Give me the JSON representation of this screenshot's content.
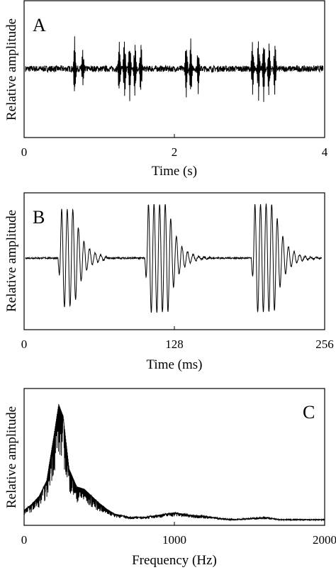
{
  "chart_data": [
    {
      "panel": "A",
      "type": "line",
      "xlabel": "Time (s)",
      "ylabel": "Relative amplitude",
      "xlim": [
        0,
        4
      ],
      "x_ticks": [
        "0",
        "2",
        "4"
      ],
      "y_ticks": [],
      "grid": false,
      "series": [
        {
          "pulses": [
            {
              "t": 0.66,
              "a": 1.0
            },
            {
              "t": 0.77,
              "a": 0.6
            },
            {
              "t": 1.26,
              "a": 0.85
            },
            {
              "t": 1.33,
              "a": 1.0
            },
            {
              "t": 1.4,
              "a": 0.95
            },
            {
              "t": 1.47,
              "a": 0.9
            },
            {
              "t": 1.55,
              "a": 0.8
            },
            {
              "t": 2.16,
              "a": 0.85
            },
            {
              "t": 2.22,
              "a": 0.9
            },
            {
              "t": 2.32,
              "a": 0.7
            },
            {
              "t": 3.05,
              "a": 0.85
            },
            {
              "t": 3.13,
              "a": 1.0
            },
            {
              "t": 3.2,
              "a": 0.95
            },
            {
              "t": 3.27,
              "a": 0.9
            },
            {
              "t": 3.35,
              "a": 0.8
            }
          ]
        }
      ]
    },
    {
      "panel": "B",
      "type": "line",
      "xlabel": "Time (ms)",
      "ylabel": "Relative amplitude",
      "xlim": [
        0,
        256
      ],
      "x_ticks": [
        "0",
        "128",
        "256"
      ],
      "y_ticks": [],
      "grid": false,
      "series": [
        {
          "pulses": [
            {
              "t": 30,
              "a": 0.9,
              "width": 20
            },
            {
              "t": 105,
              "a": 1.0,
              "width": 30
            },
            {
              "t": 197,
              "a": 1.0,
              "width": 30
            }
          ]
        }
      ]
    },
    {
      "panel": "C",
      "type": "line",
      "xlabel": "Frequency (Hz)",
      "ylabel": "Relative amplitude",
      "xlim": [
        0,
        2000
      ],
      "x_ticks": [
        "0",
        "1000",
        "2000"
      ],
      "y_ticks": [],
      "grid": false,
      "series": [
        {
          "x": [
            0,
            50,
            100,
            150,
            200,
            230,
            260,
            300,
            350,
            400,
            450,
            500,
            550,
            600,
            700,
            800,
            900,
            1000,
            1100,
            1200,
            1300,
            1400,
            1500,
            1600,
            1700,
            1800,
            1900,
            2000
          ],
          "y": [
            0.1,
            0.15,
            0.22,
            0.35,
            0.75,
            1.0,
            0.9,
            0.45,
            0.3,
            0.28,
            0.22,
            0.16,
            0.11,
            0.07,
            0.04,
            0.04,
            0.06,
            0.08,
            0.06,
            0.05,
            0.03,
            0.02,
            0.03,
            0.04,
            0.02,
            0.02,
            0.02,
            0.02
          ]
        }
      ]
    }
  ]
}
